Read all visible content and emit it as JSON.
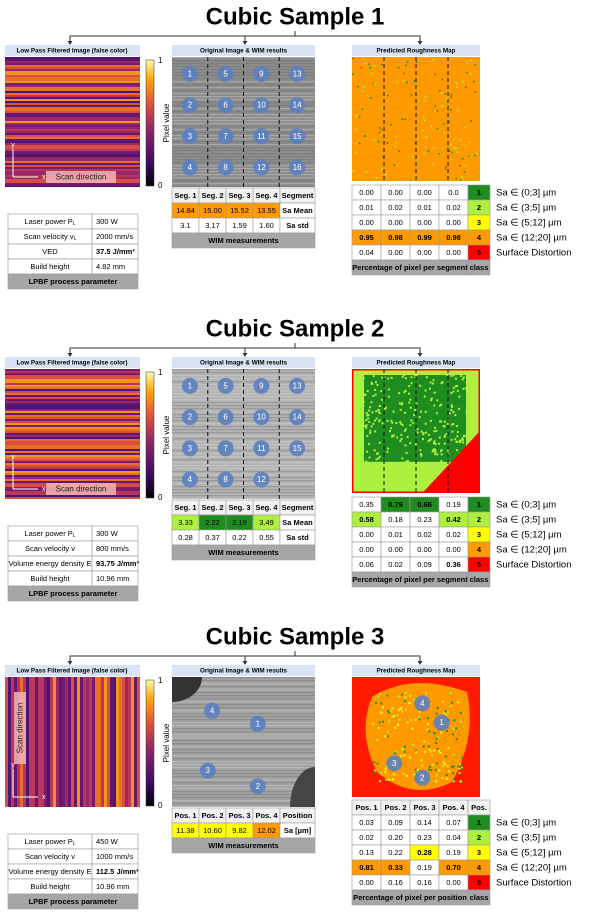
{
  "samples": [
    {
      "title": "Cubic Sample 1",
      "filtered": {
        "header": "Low Pass Filtered Image (false color)",
        "colorbar_max": "1",
        "colorbar_min": "0",
        "colorbar_label": "Pixel value",
        "axis_y": "y",
        "axis_x": "x",
        "scan_direction": "Scan direction"
      },
      "parameters": {
        "rows": [
          {
            "label": "Laser power P",
            "sub": "L",
            "value": "300 W"
          },
          {
            "label": "Scan velocity v",
            "sub": "L",
            "value": "2000 mm/s"
          },
          {
            "label": "VED",
            "value": "37.5 J/mm³"
          },
          {
            "label": "Build height",
            "value": "4.82 mm"
          }
        ],
        "footer": "LPBF process parameter"
      },
      "wim": {
        "header": "Original Image & WIM results",
        "markers": [
          "1",
          "2",
          "3",
          "4",
          "5",
          "6",
          "7",
          "8",
          "9",
          "10",
          "11",
          "12",
          "13",
          "14",
          "15",
          "16"
        ],
        "columns": [
          "Seg. 1",
          "Seg. 2",
          "Seg. 3",
          "Seg. 4",
          "Segment"
        ],
        "rows": [
          {
            "values": [
              "14.84",
              "15.00",
              "15.52",
              "13.55"
            ],
            "label": "Sa Mean"
          },
          {
            "values": [
              "3.1",
              "3.17",
              "1.59",
              "1.60"
            ],
            "label": "Sa std"
          }
        ],
        "footer": "WIM measurements"
      },
      "map": {
        "header": "Predicted Roughness Map",
        "rows": [
          {
            "values": [
              "0.00",
              "0.00",
              "0.00",
              "0.0"
            ],
            "class": "1",
            "legend": "Sa ∈ (0;3] µm"
          },
          {
            "values": [
              "0.01",
              "0.02",
              "0.01",
              "0.02"
            ],
            "class": "2",
            "legend": "Sa ∈ (3;5] µm"
          },
          {
            "values": [
              "0.00",
              "0.00",
              "0.00",
              "0.00"
            ],
            "class": "3",
            "legend": "Sa ∈ (5;12] µm"
          },
          {
            "values": [
              "0.95",
              "0.98",
              "0.99",
              "0.98"
            ],
            "class": "4",
            "legend": "Sa ∈ (12;20] µm"
          },
          {
            "values": [
              "0.04",
              "0.00",
              "0.00",
              "0.00"
            ],
            "class": "5",
            "legend": "Surface Distortion"
          }
        ],
        "footer": "Percentage of pixel per segment",
        "class_header": "class"
      }
    },
    {
      "title": "Cubic Sample 2",
      "filtered": {
        "header": "Low Pass Filtered Image (false color)",
        "colorbar_max": "1",
        "colorbar_min": "0",
        "colorbar_label": "Pixel value",
        "axis_y": "y",
        "axis_x": "x",
        "scan_direction": "Scan direction"
      },
      "parameters": {
        "rows": [
          {
            "label": "Laser power P",
            "sub": "L",
            "value": "300 W"
          },
          {
            "label": "Scan velocity v",
            "value": "800 mm/s"
          },
          {
            "label": "Volume energy density E",
            "value": "93.75 J/mm³"
          },
          {
            "label": "Build height",
            "value": "10.96 mm"
          }
        ],
        "footer": "LPBF process parameter"
      },
      "wim": {
        "header": "Original Image & WIM results",
        "markers": [
          "1",
          "2",
          "3",
          "4",
          "5",
          "6",
          "7",
          "8",
          "9",
          "10",
          "11",
          "12",
          "13",
          "14",
          "15"
        ],
        "columns": [
          "Seg. 1",
          "Seg. 2",
          "Seg. 3",
          "Seg. 4",
          "Segment"
        ],
        "rows": [
          {
            "values": [
              "3.33",
              "2.22",
              "2.19",
              "3.49"
            ],
            "label": "Sa Mean"
          },
          {
            "values": [
              "0.28",
              "0.37",
              "0.22",
              "0.55"
            ],
            "label": "Sa std"
          }
        ],
        "footer": "WIM measurements"
      },
      "map": {
        "header": "Predicted Roughness Map",
        "rows": [
          {
            "values": [
              "0.35",
              "0.79",
              "0.66",
              "0.19"
            ],
            "class": "1",
            "legend": "Sa ∈ (0;3] µm"
          },
          {
            "values": [
              "0.58",
              "0.18",
              "0.23",
              "0.42"
            ],
            "class": "2",
            "legend": "Sa ∈ (3;5] µm"
          },
          {
            "values": [
              "0.00",
              "0.01",
              "0.02",
              "0.02"
            ],
            "class": "3",
            "legend": "Sa ∈ (5;12] µm"
          },
          {
            "values": [
              "0.00",
              "0.00",
              "0.00",
              "0.00"
            ],
            "class": "4",
            "legend": "Sa ∈ (12;20] µm"
          },
          {
            "values": [
              "0.06",
              "0.02",
              "0.09",
              "0.36"
            ],
            "class": "5",
            "legend": "Surface Distortion"
          }
        ],
        "footer": "Percentage of pixel per segment",
        "class_header": "class"
      }
    },
    {
      "title": "Cubic Sample 3",
      "filtered": {
        "header": "Low Pass Filtered Image (false color)",
        "colorbar_max": "1",
        "colorbar_min": "0",
        "colorbar_label": "Pixel value",
        "axis_y": "y",
        "axis_x": "x",
        "scan_direction": "Scan direction"
      },
      "parameters": {
        "rows": [
          {
            "label": "Laser power P",
            "sub": "L",
            "value": "450 W"
          },
          {
            "label": "Scan velocity v",
            "value": "1000 mm/s"
          },
          {
            "label": "Volume energy density E",
            "value": "112.5 J/mm³"
          },
          {
            "label": "Build height",
            "value": "10.96 mm"
          }
        ],
        "footer": "LPBF process parameter"
      },
      "wim": {
        "header": "Original Image & WIM results",
        "markers": [
          "4",
          "1",
          "3",
          "2"
        ],
        "columns": [
          "Pos. 1",
          "Pos. 2",
          "Pos. 3",
          "Pos. 4",
          "Position"
        ],
        "rows": [
          {
            "values": [
              "11.38",
              "10.60",
              "9.82",
              "12.02"
            ],
            "label": "Sa [µm]"
          }
        ],
        "footer": "WIM measurements"
      },
      "map": {
        "header": "Predicted Roughness Map",
        "columns": [
          "Pos. 1",
          "Pos. 2",
          "Pos. 3",
          "Pos. 4",
          "Pos."
        ],
        "rows": [
          {
            "values": [
              "0.03",
              "0.09",
              "0.14",
              "0.07"
            ],
            "class": "1",
            "legend": "Sa ∈ (0;3] µm"
          },
          {
            "values": [
              "0.02",
              "0.20",
              "0.23",
              "0.04"
            ],
            "class": "2",
            "legend": "Sa ∈ (3;5] µm"
          },
          {
            "values": [
              "0.13",
              "0.22",
              "0.28",
              "0.19"
            ],
            "class": "3",
            "legend": "Sa ∈ (5;12] µm"
          },
          {
            "values": [
              "0.81",
              "0.33",
              "0.19",
              "0.70"
            ],
            "class": "4",
            "legend": "Sa ∈ (12;20] µm"
          },
          {
            "values": [
              "0.00",
              "0.16",
              "0.16",
              "0.00"
            ],
            "class": "5",
            "legend": "Surface Distortion"
          }
        ],
        "footer": "Percentage of pixel per position",
        "class_header": "class"
      }
    }
  ],
  "class_colors": [
    "#1e8c1e",
    "#aef040",
    "#ffff00",
    "#ff9a00",
    "#ff0000"
  ]
}
